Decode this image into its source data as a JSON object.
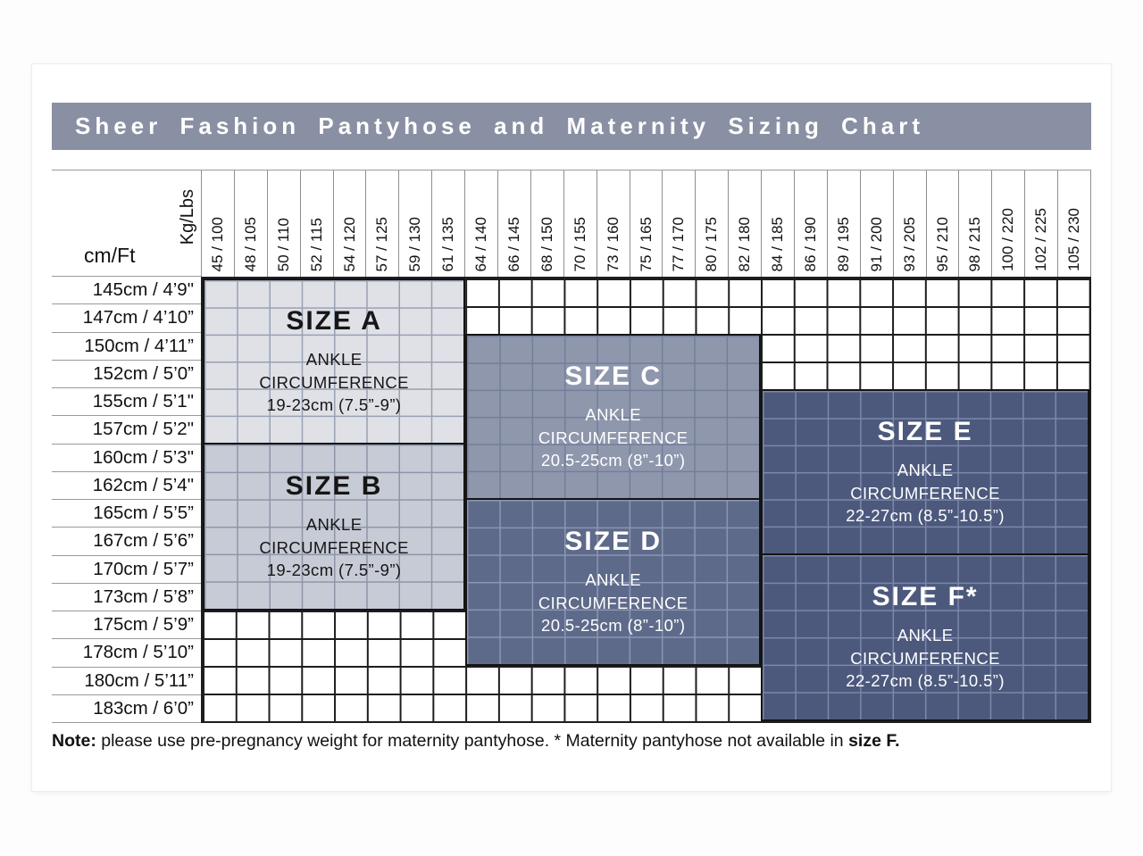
{
  "title": "Sheer Fashion Pantyhose and Maternity Sizing Chart",
  "axes": {
    "weight_label": "Kg/Lbs",
    "height_label": "cm/Ft"
  },
  "sizes": {
    "a": {
      "title": "SIZE A",
      "line1": "ANKLE",
      "line2": "CIRCUMFERENCE",
      "line3": "19-23cm (7.5”-9”)"
    },
    "b": {
      "title": "SIZE B",
      "line1": "ANKLE",
      "line2": "CIRCUMFERENCE",
      "line3": "19-23cm (7.5”-9”)"
    },
    "c": {
      "title": "SIZE C",
      "line1": "ANKLE",
      "line2": "CIRCUMFERENCE",
      "line3": "20.5-25cm (8”-10”)"
    },
    "d": {
      "title": "SIZE D",
      "line1": "ANKLE",
      "line2": "CIRCUMFERENCE",
      "line3": "20.5-25cm (8”-10”)"
    },
    "e": {
      "title": "SIZE E",
      "line1": "ANKLE",
      "line2": "CIRCUMFERENCE",
      "line3": "22-27cm (8.5”-10.5”)"
    },
    "f": {
      "title": "SIZE F*",
      "line1": "ANKLE",
      "line2": "CIRCUMFERENCE",
      "line3": "22-27cm (8.5”-10.5”)"
    }
  },
  "note": {
    "prefix": "Note:",
    "body": " please use pre-pregnancy weight for maternity pantyhose. * Maternity pantyhose not available in ",
    "suffix": "size F."
  },
  "colors": {
    "title_bar": "#8a90a3",
    "size_a_fill": "#dfe1e7",
    "size_b_fill": "#c7cbd6",
    "size_c_fill": "#8f97ad",
    "size_d_fill": "#5e6a8a",
    "size_e_fill": "#4c597d",
    "size_f_fill": "#4c597d",
    "grid_line": "#1d1d1d",
    "text_dark": "#161616",
    "text_light": "#ffffff"
  },
  "chart_data": {
    "type": "table",
    "title": "Sheer Fashion Pantyhose and Maternity Sizing Chart",
    "x_axis": {
      "label": "Kg/Lbs",
      "ticks": [
        "45 / 100",
        "48 / 105",
        "50 / 110",
        "52 / 115",
        "54 / 120",
        "57 / 125",
        "59 / 130",
        "61 / 135",
        "64 / 140",
        "66 / 145",
        "68 / 150",
        "70 / 155",
        "73 / 160",
        "75 / 165",
        "77 / 170",
        "80 / 175",
        "82 / 180",
        "84 / 185",
        "86 / 190",
        "89 / 195",
        "91 / 200",
        "93 / 205",
        "95 / 210",
        "98 / 215",
        "100 / 220",
        "102 / 225",
        "105 / 230"
      ]
    },
    "y_axis": {
      "label": "cm/Ft",
      "ticks": [
        "145cm / 4’9\"",
        "147cm / 4’10”",
        "150cm / 4’11”",
        "152cm / 5’0”",
        "155cm / 5’1\"",
        "157cm / 5’2\"",
        "160cm / 5’3\"",
        "162cm / 5’4\"",
        "165cm / 5’5”",
        "167cm / 5’6”",
        "170cm / 5’7”",
        "173cm / 5’8”",
        "175cm / 5’9”",
        "178cm / 5’10”",
        "180cm / 5’11”",
        "183cm / 6’0”"
      ]
    },
    "regions": [
      {
        "size": "A",
        "height_range": "145cm / 4’9\" – 157cm / 5’2\"",
        "weight_range": "45 / 100 – 61 / 135",
        "ankle_circumference": "19-23cm (7.5”-9”)"
      },
      {
        "size": "B",
        "height_range": "160cm / 5’3\" – 173cm / 5’8”",
        "weight_range": "45 / 100 – 61 / 135",
        "ankle_circumference": "19-23cm (7.5”-9”)"
      },
      {
        "size": "C",
        "height_range": "150cm / 4’11” – 162cm / 5’4\"",
        "weight_range": "64 / 140 – 82 / 180",
        "ankle_circumference": "20.5-25cm (8”-10”)"
      },
      {
        "size": "D",
        "height_range": "165cm / 5’5” – 178cm / 5’10”",
        "weight_range": "64 / 140 – 82 / 180",
        "ankle_circumference": "20.5-25cm (8”-10”)"
      },
      {
        "size": "E",
        "height_range": "155cm / 5’1\" – 167cm / 5’6”",
        "weight_range": "84 / 185 – 105 / 230",
        "ankle_circumference": "22-27cm (8.5”-10.5”)"
      },
      {
        "size": "F*",
        "height_range": "170cm / 5’7” – 183cm / 6’0”",
        "weight_range": "84 / 185 – 105 / 230",
        "ankle_circumference": "22-27cm (8.5”-10.5”)"
      }
    ]
  }
}
